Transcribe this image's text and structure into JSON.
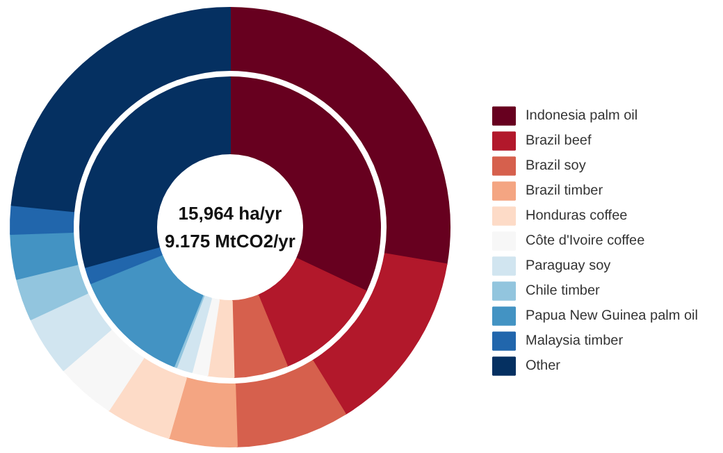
{
  "chart_data": {
    "type": "donut",
    "categories": [
      "Indonesia palm oil",
      "Brazil beef",
      "Brazil soy",
      "Brazil timber",
      "Honduras coffee",
      "Côte d'Ivoire coffee",
      "Paraguay soy",
      "Chile timber",
      "Papua New Guinea palm oil",
      "Malaysia timber",
      "Other"
    ],
    "colors": [
      "#67001f",
      "#b2182b",
      "#d6604d",
      "#f4a582",
      "#fddbc7",
      "#f7f7f7",
      "#d1e5f0",
      "#92c5de",
      "#4393c3",
      "#2166ac",
      "#053061"
    ],
    "series": [
      {
        "values": [
          27.7,
          13.5,
          8.3,
          5.0,
          4.8,
          4.4,
          4.4,
          3.1,
          3.3,
          2.1,
          23.4
        ]
      },
      {
        "values": [
          32.0,
          11.8,
          5.8,
          0.0,
          2.8,
          1.7,
          1.7,
          0.3,
          12.8,
          1.8,
          29.3
        ]
      }
    ],
    "annotations": [
      "15,964 ha/yr",
      "9.175 MtCO2/yr"
    ],
    "legend": "right"
  }
}
